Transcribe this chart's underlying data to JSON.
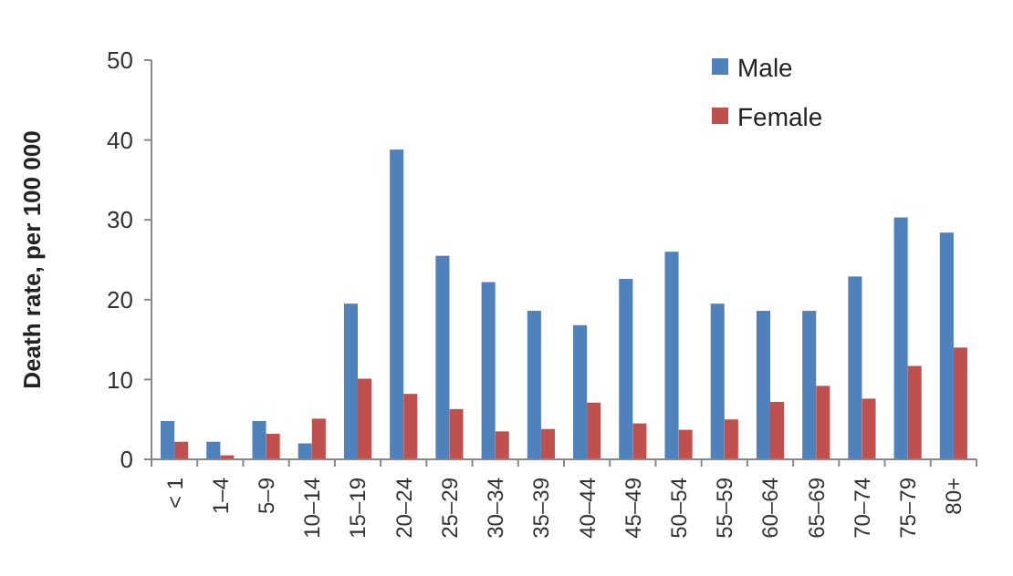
{
  "chart_data": {
    "type": "bar",
    "ylabel": "Death rate, per 100 000",
    "categories": [
      "< 1",
      "1–4",
      "5–9",
      "10–14",
      "15–19",
      "20–24",
      "25–29",
      "30–34",
      "35–39",
      "40–44",
      "45–49",
      "50–54",
      "55–59",
      "60–64",
      "65–69",
      "70–74",
      "75–79",
      "80+"
    ],
    "series": [
      {
        "name": "Male",
        "color": "#4f81bd",
        "values": [
          4.8,
          2.2,
          4.8,
          2,
          19.5,
          38.8,
          25.5,
          22.2,
          18.6,
          16.8,
          22.6,
          26,
          19.5,
          18.6,
          18.6,
          22.9,
          30.3,
          28.4
        ]
      },
      {
        "name": "Female",
        "color": "#c0504d",
        "values": [
          2.2,
          0.5,
          3.2,
          5.1,
          10.1,
          8.2,
          6.3,
          3.5,
          3.8,
          7.1,
          4.5,
          3.7,
          5,
          7.2,
          9.2,
          7.6,
          11.7,
          14
        ]
      }
    ],
    "ylim": [
      0,
      50
    ],
    "yticks": [
      0,
      10,
      20,
      30,
      40,
      50
    ],
    "legend": "top right"
  }
}
